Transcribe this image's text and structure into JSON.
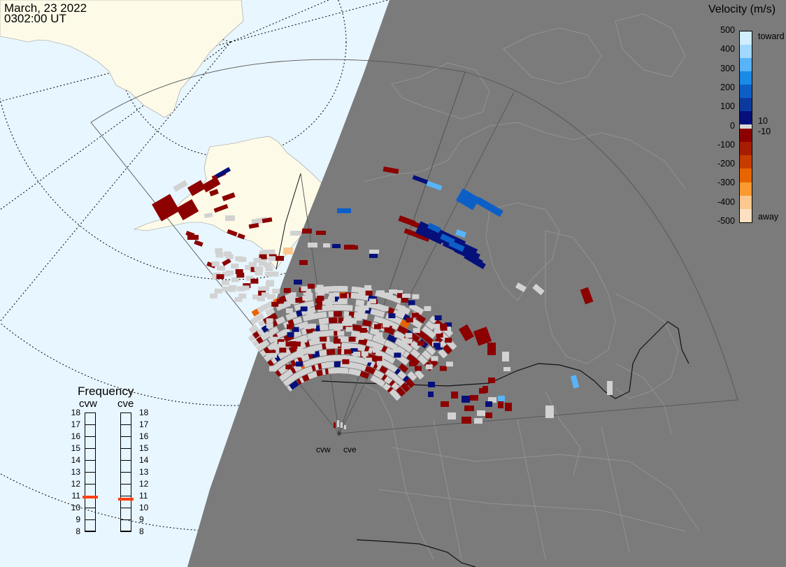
{
  "header": {
    "date": "March, 23 2022",
    "time": "0302:00 UT"
  },
  "colorbar": {
    "title": "Velocity (m/s)",
    "ticks": [
      "500",
      "400",
      "300",
      "200",
      "100",
      "0",
      "-100",
      "-200",
      "-300",
      "-400",
      "-500"
    ],
    "toward_label": "toward",
    "away_label": "away",
    "inner_pos": "10",
    "inner_neg": "-10",
    "colors": [
      "#cfeeff",
      "#a0d8ff",
      "#58b4f8",
      "#1a8ae8",
      "#0d5fc8",
      "#0a3a9e",
      "#05107a",
      "#d8d8d8",
      "#8c0000",
      "#a81c00",
      "#c83c00",
      "#e86400",
      "#fa9a30",
      "#fcc890",
      "#fde0c0"
    ]
  },
  "frequency": {
    "title": "Frequency",
    "radars": [
      "cvw",
      "cve"
    ],
    "ticks": [
      "18",
      "17",
      "16",
      "15",
      "14",
      "13",
      "12",
      "11",
      "10",
      "9",
      "8"
    ],
    "cvw_value_mhz": 10.9,
    "cve_value_mhz": 10.7,
    "marker_color": "#ff4010"
  },
  "map": {
    "ocean_color": "#e8f6ff",
    "land_color": "#fdfbe8",
    "night_color": "#7b7b7b",
    "ground_scatter_color": "#d2d2d2",
    "site_labels": [
      "cvw",
      "cve"
    ]
  }
}
